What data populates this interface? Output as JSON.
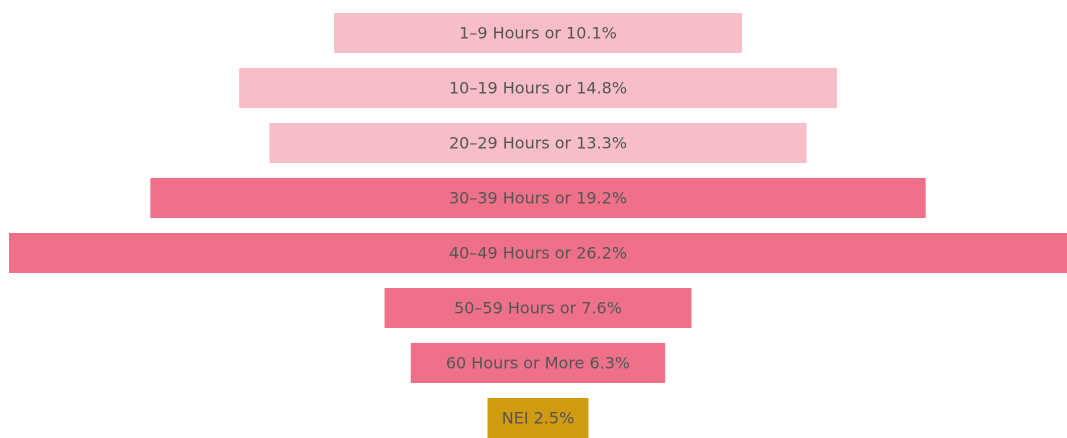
{
  "chart_data": {
    "type": "bar",
    "orientation": "horizontal-centered",
    "values": [
      10.1,
      14.8,
      13.3,
      19.2,
      26.2,
      7.6,
      6.3,
      2.5
    ],
    "value_labels": [
      "1–9 Hours or 10.1%",
      "10–19 Hours or 14.8%",
      "20–29 Hours or 13.3%",
      "30–39 Hours or 19.2%",
      "40–49 Hours or 26.2%",
      "50–59 Hours or 7.6%",
      "60 Hours or More 6.3%",
      "NEI 2.5%"
    ],
    "colors": [
      "#f7bec7",
      "#f7bec7",
      "#f7bec7",
      "#ee7189",
      "#ee7189",
      "#ee7189",
      "#ee7189",
      "#d09b0e"
    ]
  }
}
